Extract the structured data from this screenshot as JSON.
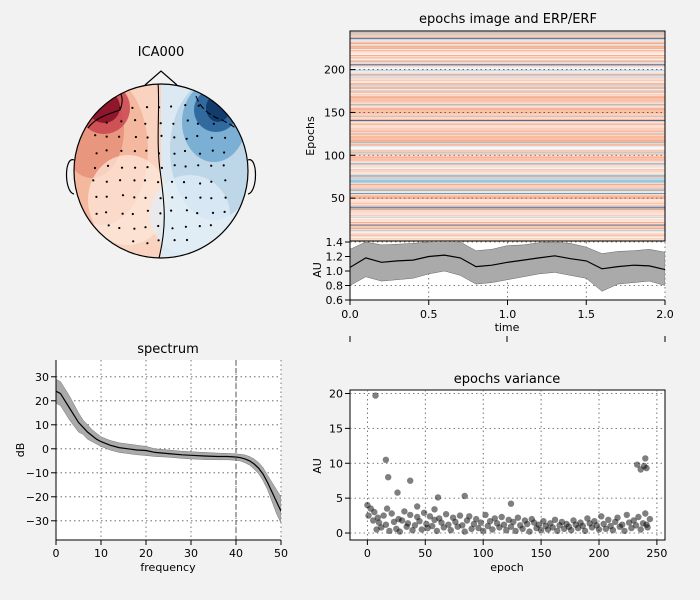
{
  "figure": {
    "background": "#f2f2f2"
  },
  "chart_data": [
    {
      "type": "heatmap",
      "variant": "topomap",
      "title": "ICA000",
      "colormap": "RdBu_r"
    },
    {
      "type": "heatmap",
      "title": "epochs image and ERP/ERF",
      "ylabel": "Epochs",
      "yticks": [
        50,
        100,
        150,
        200
      ],
      "n_epochs": 245,
      "colormap": "RdBu_r"
    },
    {
      "type": "line",
      "xlabel": "time",
      "ylabel": "AU",
      "xlim": [
        0.0,
        2.0
      ],
      "ylim": [
        0.6,
        1.4
      ],
      "xticks": [
        "0.0",
        "0.5",
        "1.0",
        "1.5",
        "2.0"
      ],
      "yticks": [
        "0.6",
        "0.8",
        "1.0",
        "1.2",
        "1.4"
      ],
      "grid": true,
      "band_color": "#aaaaaa",
      "x": [
        0.0,
        0.1,
        0.2,
        0.3,
        0.4,
        0.5,
        0.6,
        0.7,
        0.8,
        0.9,
        1.0,
        1.1,
        1.2,
        1.3,
        1.4,
        1.5,
        1.6,
        1.7,
        1.8,
        1.9,
        2.0
      ],
      "mean": [
        1.05,
        1.18,
        1.12,
        1.14,
        1.15,
        1.2,
        1.22,
        1.18,
        1.06,
        1.08,
        1.12,
        1.15,
        1.18,
        1.21,
        1.17,
        1.14,
        1.03,
        1.06,
        1.08,
        1.07,
        1.02
      ],
      "band_upper": [
        1.3,
        1.4,
        1.36,
        1.37,
        1.38,
        1.4,
        1.41,
        1.4,
        1.28,
        1.3,
        1.35,
        1.36,
        1.39,
        1.4,
        1.38,
        1.33,
        1.24,
        1.27,
        1.28,
        1.3,
        1.26
      ],
      "band_lower": [
        0.8,
        0.92,
        0.86,
        0.88,
        0.9,
        0.96,
        1.0,
        0.94,
        0.82,
        0.84,
        0.88,
        0.92,
        0.96,
        0.98,
        0.94,
        0.9,
        0.72,
        0.82,
        0.84,
        0.86,
        0.8
      ]
    },
    {
      "type": "line",
      "title": "spectrum",
      "xlabel": "frequency",
      "ylabel": "dB",
      "xlim": [
        0,
        50
      ],
      "ylim": [
        -38,
        37
      ],
      "xticks": [
        "0",
        "10",
        "20",
        "30",
        "40",
        "50"
      ],
      "yticks": [
        "−30",
        "−20",
        "−10",
        "0",
        "10",
        "20",
        "30"
      ],
      "ytick_values": [
        -30,
        -20,
        -10,
        0,
        10,
        20,
        30
      ],
      "grid": true,
      "vline_x": 40,
      "band_color": "#aaaaaa",
      "x": [
        0,
        1,
        2,
        3,
        4,
        5,
        6,
        7,
        8,
        9,
        10,
        12,
        14,
        16,
        18,
        20,
        22,
        25,
        28,
        30,
        33,
        36,
        38,
        40,
        41,
        42,
        43,
        44,
        45,
        46,
        47,
        48,
        49,
        50
      ],
      "mean": [
        24,
        23,
        20,
        17,
        14,
        11,
        9,
        7,
        5.5,
        4,
        3,
        1.5,
        0.5,
        0,
        -0.5,
        -0.7,
        -1.5,
        -2,
        -2.5,
        -2.7,
        -3,
        -3.2,
        -3.2,
        -3.4,
        -3.7,
        -4.2,
        -5,
        -6.3,
        -8,
        -10.5,
        -14,
        -18,
        -22,
        -26
      ],
      "band_upper": [
        29,
        28,
        25,
        22,
        18.5,
        15,
        12,
        10,
        8,
        6.5,
        5,
        3.5,
        2.5,
        2,
        1.5,
        1,
        0,
        -0.5,
        -1,
        -1.2,
        -1.5,
        -1.8,
        -1.9,
        -2.1,
        -2.3,
        -2.6,
        -3.2,
        -4.2,
        -5.7,
        -7.8,
        -11,
        -14,
        -17,
        -20
      ],
      "band_lower": [
        19,
        18,
        15,
        12,
        9.5,
        7,
        6,
        4,
        3,
        2,
        1,
        -0.5,
        -1.5,
        -2,
        -2.5,
        -2.8,
        -3.2,
        -3.5,
        -4,
        -4.2,
        -4.5,
        -4.6,
        -4.6,
        -4.8,
        -5.1,
        -5.8,
        -6.8,
        -8.4,
        -10.3,
        -13.2,
        -17,
        -22,
        -27,
        -31
      ]
    },
    {
      "type": "scatter",
      "title": "epochs variance",
      "xlabel": "epoch",
      "ylabel": "AU",
      "xlim": [
        -15,
        257
      ],
      "ylim": [
        -1,
        20.5
      ],
      "xticks": [
        "0",
        "50",
        "100",
        "150",
        "200",
        "250"
      ],
      "xtick_values": [
        0,
        50,
        100,
        150,
        200,
        250
      ],
      "yticks": [
        "0",
        "5",
        "10",
        "15",
        "20"
      ],
      "ytick_values": [
        0,
        5,
        10,
        15,
        20
      ],
      "grid": true,
      "marker_color": "#000000",
      "x": [
        0,
        1,
        3,
        5,
        6,
        8,
        9,
        10,
        12,
        14,
        16,
        17,
        19,
        21,
        23,
        25,
        27,
        28,
        30,
        32,
        34,
        35,
        37,
        39,
        41,
        43,
        45,
        47,
        49,
        51,
        52,
        54,
        56,
        58,
        60,
        62,
        64,
        66,
        68,
        70,
        72,
        74,
        76,
        78,
        80,
        82,
        84,
        86,
        88,
        90,
        92,
        94,
        96,
        98,
        100,
        102,
        104,
        106,
        108,
        110,
        112,
        114,
        116,
        118,
        120,
        122,
        124,
        126,
        128,
        130,
        132,
        134,
        136,
        138,
        140,
        142,
        144,
        146,
        148,
        150,
        152,
        154,
        156,
        158,
        160,
        162,
        164,
        166,
        168,
        170,
        172,
        174,
        176,
        178,
        180,
        182,
        184,
        186,
        188,
        190,
        192,
        194,
        196,
        198,
        200,
        202,
        204,
        206,
        208,
        210,
        212,
        214,
        216,
        218,
        220,
        222,
        224,
        226,
        228,
        230,
        232,
        234,
        236,
        238,
        240,
        241,
        242,
        244,
        7,
        16,
        18,
        26,
        37,
        43,
        58,
        61,
        84,
        124,
        233,
        236,
        239,
        240,
        241
      ],
      "y": [
        4,
        2.5,
        3.5,
        1.8,
        3,
        0.5,
        2.2,
        1.5,
        0.8,
        2.5,
        1.2,
        3.5,
        0.3,
        2.8,
        1.6,
        0.6,
        2,
        0.2,
        1.8,
        3.1,
        0.9,
        1.4,
        2.6,
        0.4,
        1.1,
        2.3,
        1.7,
        0.5,
        2.9,
        1.3,
        0.7,
        2.4,
        1,
        1.9,
        0.3,
        2.1,
        1.5,
        0.8,
        2.7,
        1.2,
        0.4,
        2.2,
        1.6,
        0.9,
        2.5,
        1.1,
        0.2,
        1.8,
        2.4,
        0.6,
        1.3,
        2,
        0.7,
        1.5,
        0.3,
        2.6,
        1,
        1.7,
        0.5,
        2.1,
        1.4,
        0.8,
        2.3,
        1.2,
        0.4,
        1.9,
        0.9,
        1.6,
        0.3,
        2.2,
        1.1,
        0.6,
        1.8,
        1.3,
        0.2,
        2,
        1.5,
        0.7,
        1.2,
        0.4,
        1.7,
        1,
        0.5,
        1.4,
        0.8,
        1.9,
        0.3,
        1.1,
        1.6,
        0.6,
        1.3,
        0.9,
        0.4,
        1.8,
        1.2,
        0.7,
        1.5,
        1,
        0.3,
        2.1,
        1.4,
        0.8,
        1.7,
        1.1,
        0.5,
        2.4,
        1.3,
        0.6,
        1.9,
        1,
        0.4,
        1.6,
        2.2,
        0.9,
        1.2,
        0.3,
        2.6,
        1.5,
        0.7,
        1.8,
        1.1,
        2.3,
        0.5,
        1.4,
        2.8,
        1.2,
        0.8,
        2,
        19.7,
        10.5,
        8,
        5.8,
        7.5,
        3.8,
        3.4,
        5.1,
        5.3,
        4.2,
        9.8,
        9.1,
        9.6,
        10.7,
        9.3
      ]
    }
  ]
}
